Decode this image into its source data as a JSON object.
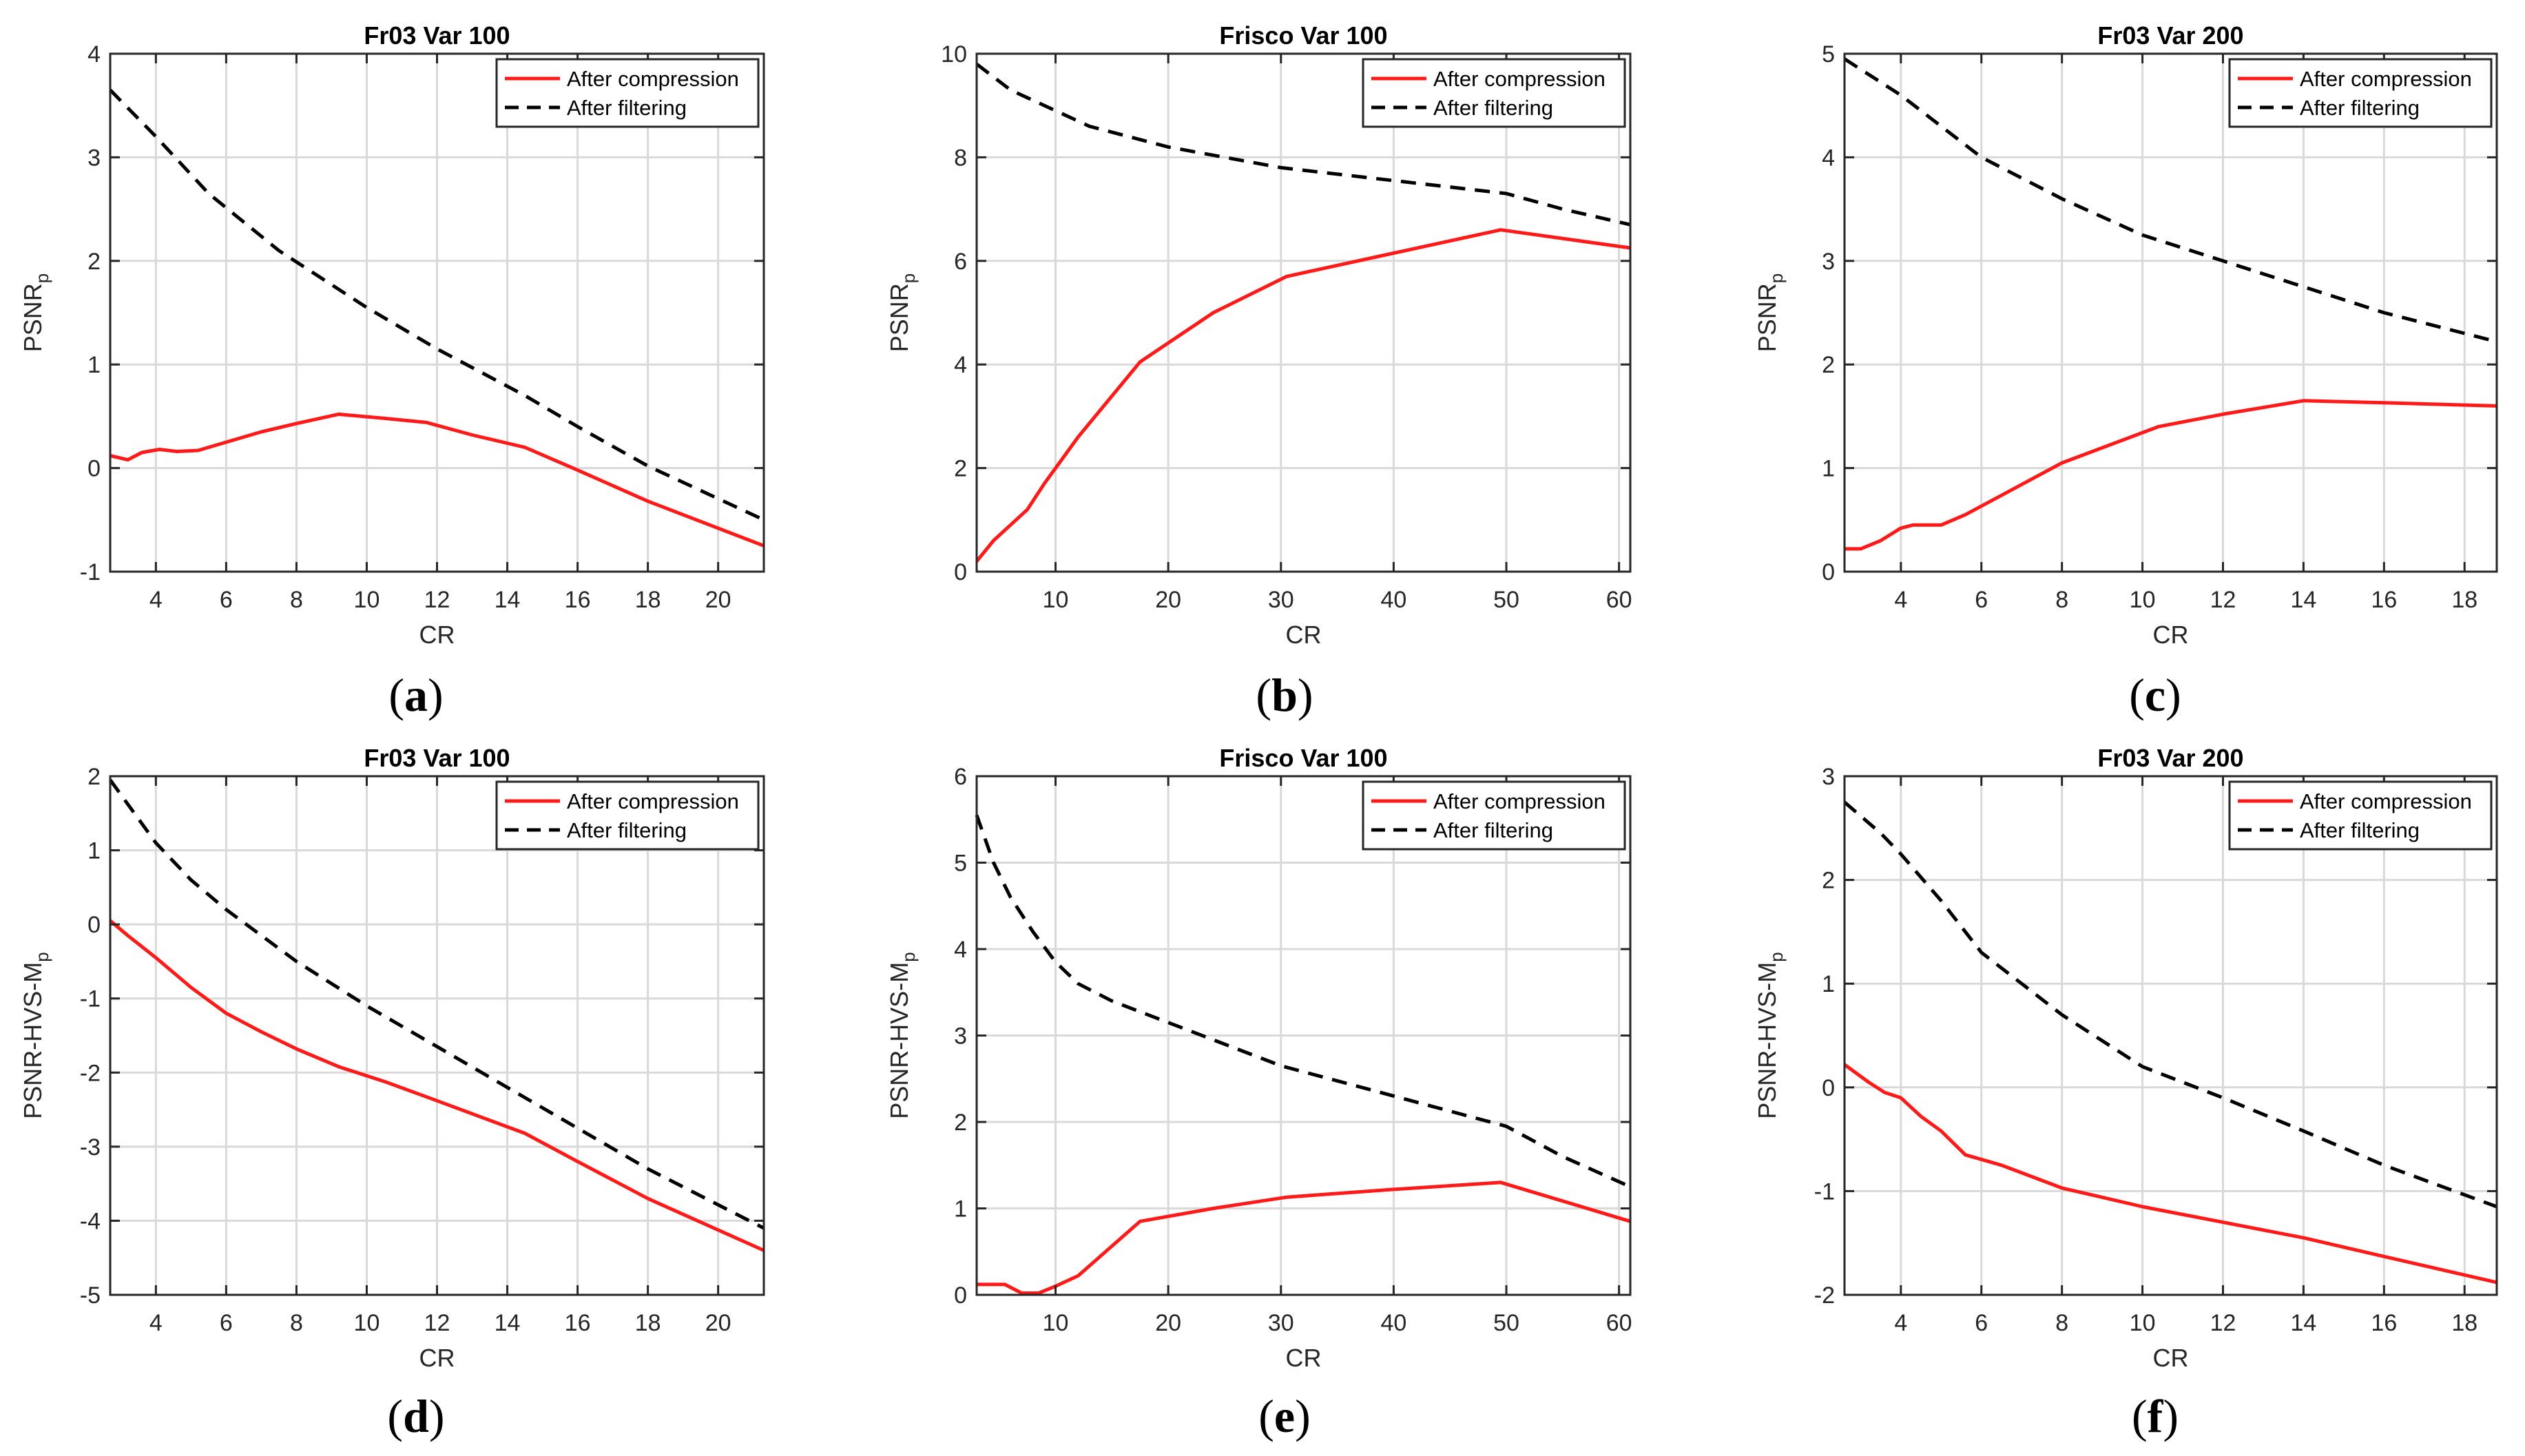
{
  "colors": {
    "compression": "#ff1a1a",
    "filtering": "#000000",
    "grid": "#d9d9d9",
    "axis": "#262626",
    "text": "#262626"
  },
  "legend": {
    "compression": "After compression",
    "filtering": "After filtering"
  },
  "chart_data": [
    {
      "type": "line",
      "panel": "(a)",
      "title": "Fr03 Var 100",
      "xlabel": "CR",
      "ylabel": "PSNR",
      "ylabel_sub": "p",
      "xlim": [
        2.7,
        21.3
      ],
      "ylim": [
        -1,
        4
      ],
      "xticks": [
        4,
        6,
        8,
        10,
        12,
        14,
        16,
        18,
        20
      ],
      "yticks": [
        -1,
        0,
        1,
        2,
        3,
        4
      ],
      "series": [
        {
          "name": "After compression",
          "style": "solid",
          "x": [
            2.7,
            3.2,
            3.6,
            4.1,
            4.6,
            5.2,
            6.0,
            7.0,
            8.0,
            9.2,
            10.5,
            11.7,
            13.0,
            14.5,
            16.0,
            18.0,
            21.3
          ],
          "y": [
            0.12,
            0.08,
            0.15,
            0.18,
            0.16,
            0.17,
            0.25,
            0.35,
            0.43,
            0.52,
            0.48,
            0.44,
            0.32,
            0.2,
            -0.02,
            -0.32,
            -0.75
          ]
        },
        {
          "name": "After filtering",
          "style": "dashed",
          "x": [
            2.7,
            4.0,
            5.5,
            7.5,
            10.0,
            12.0,
            14.5,
            16.0,
            18.0,
            21.3
          ],
          "y": [
            3.65,
            3.2,
            2.65,
            2.1,
            1.55,
            1.15,
            0.7,
            0.4,
            0.02,
            -0.5
          ]
        }
      ]
    },
    {
      "type": "line",
      "panel": "(b)",
      "title": "Frisco Var 100",
      "xlabel": "CR",
      "ylabel": "PSNR",
      "ylabel_sub": "p",
      "xlim": [
        3,
        61
      ],
      "ylim": [
        0,
        10
      ],
      "xticks": [
        10,
        20,
        30,
        40,
        50,
        60
      ],
      "yticks": [
        0,
        2,
        4,
        6,
        8,
        10
      ],
      "series": [
        {
          "name": "After compression",
          "style": "solid",
          "x": [
            3,
            4.5,
            6,
            7.5,
            9,
            12,
            17.5,
            24,
            30.5,
            40,
            49.5,
            61
          ],
          "y": [
            0.2,
            0.6,
            0.9,
            1.2,
            1.7,
            2.6,
            4.05,
            5.0,
            5.7,
            6.15,
            6.6,
            6.25
          ]
        },
        {
          "name": "After filtering",
          "style": "dashed",
          "x": [
            3,
            6,
            10,
            13,
            20,
            30,
            40,
            50,
            55,
            61
          ],
          "y": [
            9.8,
            9.3,
            8.9,
            8.6,
            8.2,
            7.8,
            7.55,
            7.3,
            7.0,
            6.7
          ]
        }
      ]
    },
    {
      "type": "line",
      "panel": "(c)",
      "title": "Fr03 Var 200",
      "xlabel": "CR",
      "ylabel": "PSNR",
      "ylabel_sub": "p",
      "xlim": [
        2.6,
        18.8
      ],
      "ylim": [
        0,
        5
      ],
      "xticks": [
        4,
        6,
        8,
        10,
        12,
        14,
        16,
        18
      ],
      "yticks": [
        0,
        1,
        2,
        3,
        4,
        5
      ],
      "series": [
        {
          "name": "After compression",
          "style": "solid",
          "x": [
            2.6,
            3.0,
            3.5,
            4.0,
            4.3,
            5.0,
            5.6,
            8.0,
            10.4,
            12.0,
            14.0,
            16.0,
            18.8
          ],
          "y": [
            0.22,
            0.22,
            0.3,
            0.42,
            0.45,
            0.45,
            0.55,
            1.05,
            1.4,
            1.52,
            1.65,
            1.63,
            1.6
          ]
        },
        {
          "name": "After filtering",
          "style": "dashed",
          "x": [
            2.6,
            4.0,
            6.0,
            8.0,
            10.0,
            12.0,
            14.0,
            16.0,
            18.8
          ],
          "y": [
            4.95,
            4.6,
            4.0,
            3.6,
            3.25,
            3.0,
            2.75,
            2.5,
            2.22
          ]
        }
      ]
    },
    {
      "type": "line",
      "panel": "(d)",
      "title": "Fr03 Var 100",
      "xlabel": "CR",
      "ylabel": "PSNR-HVS-M",
      "ylabel_sub": "p",
      "xlim": [
        2.7,
        21.3
      ],
      "ylim": [
        -5,
        2
      ],
      "xticks": [
        4,
        6,
        8,
        10,
        12,
        14,
        16,
        18,
        20
      ],
      "yticks": [
        -5,
        -4,
        -3,
        -2,
        -1,
        0,
        1,
        2
      ],
      "series": [
        {
          "name": "After compression",
          "style": "solid",
          "x": [
            2.7,
            3.2,
            4.0,
            5.0,
            6.0,
            7.0,
            8.0,
            9.2,
            10.5,
            12.0,
            14.5,
            16.0,
            18.0,
            21.3
          ],
          "y": [
            0.05,
            -0.15,
            -0.45,
            -0.85,
            -1.2,
            -1.45,
            -1.68,
            -1.92,
            -2.12,
            -2.38,
            -2.82,
            -3.2,
            -3.7,
            -4.4
          ]
        },
        {
          "name": "After filtering",
          "style": "dashed",
          "x": [
            2.7,
            4.0,
            5.0,
            6.0,
            8.0,
            10.0,
            12.0,
            14.0,
            16.0,
            18.0,
            21.3
          ],
          "y": [
            1.95,
            1.1,
            0.6,
            0.2,
            -0.5,
            -1.1,
            -1.65,
            -2.2,
            -2.75,
            -3.3,
            -4.1
          ]
        }
      ]
    },
    {
      "type": "line",
      "panel": "(e)",
      "title": "Frisco Var 100",
      "xlabel": "CR",
      "ylabel": "PSNR-HVS-M",
      "ylabel_sub": "p",
      "xlim": [
        3,
        61
      ],
      "ylim": [
        0,
        6
      ],
      "xticks": [
        10,
        20,
        30,
        40,
        50,
        60
      ],
      "yticks": [
        0,
        1,
        2,
        3,
        4,
        5,
        6
      ],
      "series": [
        {
          "name": "After compression",
          "style": "solid",
          "x": [
            3,
            4.5,
            5.5,
            7,
            8.5,
            10,
            12,
            17.5,
            24,
            30.5,
            40,
            49.5,
            61
          ],
          "y": [
            0.12,
            0.12,
            0.12,
            0.02,
            0.02,
            0.1,
            0.22,
            0.85,
            1.0,
            1.13,
            1.22,
            1.3,
            0.85
          ]
        },
        {
          "name": "After filtering",
          "style": "dashed",
          "x": [
            3,
            4.5,
            6,
            8,
            10,
            12,
            15,
            20,
            30,
            40,
            50,
            55,
            61
          ],
          "y": [
            5.55,
            5.0,
            4.6,
            4.2,
            3.85,
            3.6,
            3.4,
            3.15,
            2.65,
            2.3,
            1.95,
            1.6,
            1.25
          ]
        }
      ]
    },
    {
      "type": "line",
      "panel": "(f)",
      "title": "Fr03 Var 200",
      "xlabel": "CR",
      "ylabel": "PSNR-HVS-M",
      "ylabel_sub": "p",
      "xlim": [
        2.6,
        18.8
      ],
      "ylim": [
        -2,
        3
      ],
      "xticks": [
        4,
        6,
        8,
        10,
        12,
        14,
        16,
        18
      ],
      "yticks": [
        -2,
        -1,
        0,
        1,
        2,
        3
      ],
      "series": [
        {
          "name": "After compression",
          "style": "solid",
          "x": [
            2.6,
            3.2,
            3.6,
            4.0,
            4.5,
            5.0,
            5.6,
            6.5,
            8.0,
            10.0,
            12.0,
            14.0,
            16.0,
            18.8
          ],
          "y": [
            0.22,
            0.05,
            -0.05,
            -0.1,
            -0.28,
            -0.42,
            -0.65,
            -0.75,
            -0.97,
            -1.15,
            -1.3,
            -1.45,
            -1.63,
            -1.88
          ]
        },
        {
          "name": "After filtering",
          "style": "dashed",
          "x": [
            2.6,
            3.5,
            4.0,
            5.0,
            6.0,
            8.0,
            10.0,
            12.0,
            14.0,
            16.0,
            18.8
          ],
          "y": [
            2.75,
            2.45,
            2.25,
            1.8,
            1.3,
            0.7,
            0.2,
            -0.1,
            -0.42,
            -0.75,
            -1.15
          ]
        }
      ]
    }
  ]
}
